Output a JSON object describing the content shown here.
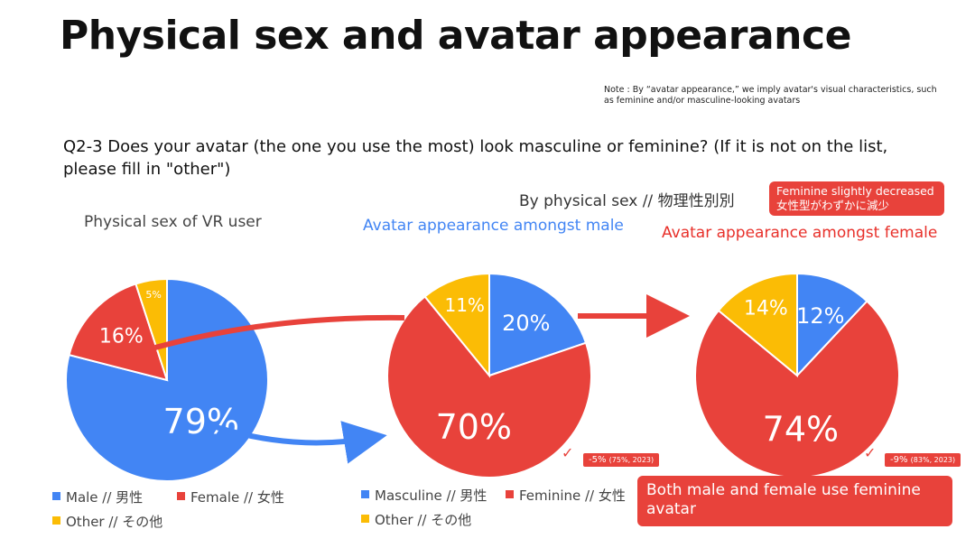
{
  "title": "Physical sex and avatar appearance",
  "note": "Note : By “avatar appearance,” we imply avatar's visual characteristics, such as feminine and/or masculine-looking avatars",
  "question": "Q2-3 Does your avatar (the one you use the most) look masculine or feminine? (If it is not on the list, please fill in \"other\")",
  "by_sex_label": "By physical sex // 物理性別別",
  "callout_top": {
    "line1": "Feminine slightly decreased",
    "line2": "女性型がわずかに減少"
  },
  "callout_bottom": "Both male and female use feminine avatar",
  "colors": {
    "blue": "#4285f4",
    "red": "#e8423b",
    "yellow": "#fbbc05"
  },
  "chart_data": [
    {
      "type": "pie",
      "title": "Physical sex of VR user",
      "categories": [
        "Male // 男性",
        "Female // 女性",
        "Other // その他"
      ],
      "values": [
        79,
        16,
        5
      ],
      "labels": [
        "79%",
        "16%",
        "5%"
      ],
      "legend": [
        "Male // 男性",
        "Female // 女性",
        "Other // その他"
      ]
    },
    {
      "type": "pie",
      "title": "Avatar appearance amongst male",
      "categories": [
        "Masculine // 男性",
        "Feminine // 女性",
        "Other // その他"
      ],
      "values": [
        20,
        70,
        11
      ],
      "labels": [
        "20%",
        "70%",
        "11%"
      ],
      "legend": [
        "Masculine // 男性",
        "Feminine // 女性",
        "Other // その他"
      ],
      "change": {
        "main": "-5%",
        "detail": "(75%, 2023)"
      }
    },
    {
      "type": "pie",
      "title": "Avatar appearance amongst female",
      "categories": [
        "Masculine // 男性",
        "Feminine // 女性",
        "Other // その他"
      ],
      "values": [
        12,
        74,
        14
      ],
      "labels": [
        "12%",
        "74%",
        "14%"
      ],
      "change": {
        "main": "-9%",
        "detail": "(83%, 2023)"
      }
    }
  ]
}
